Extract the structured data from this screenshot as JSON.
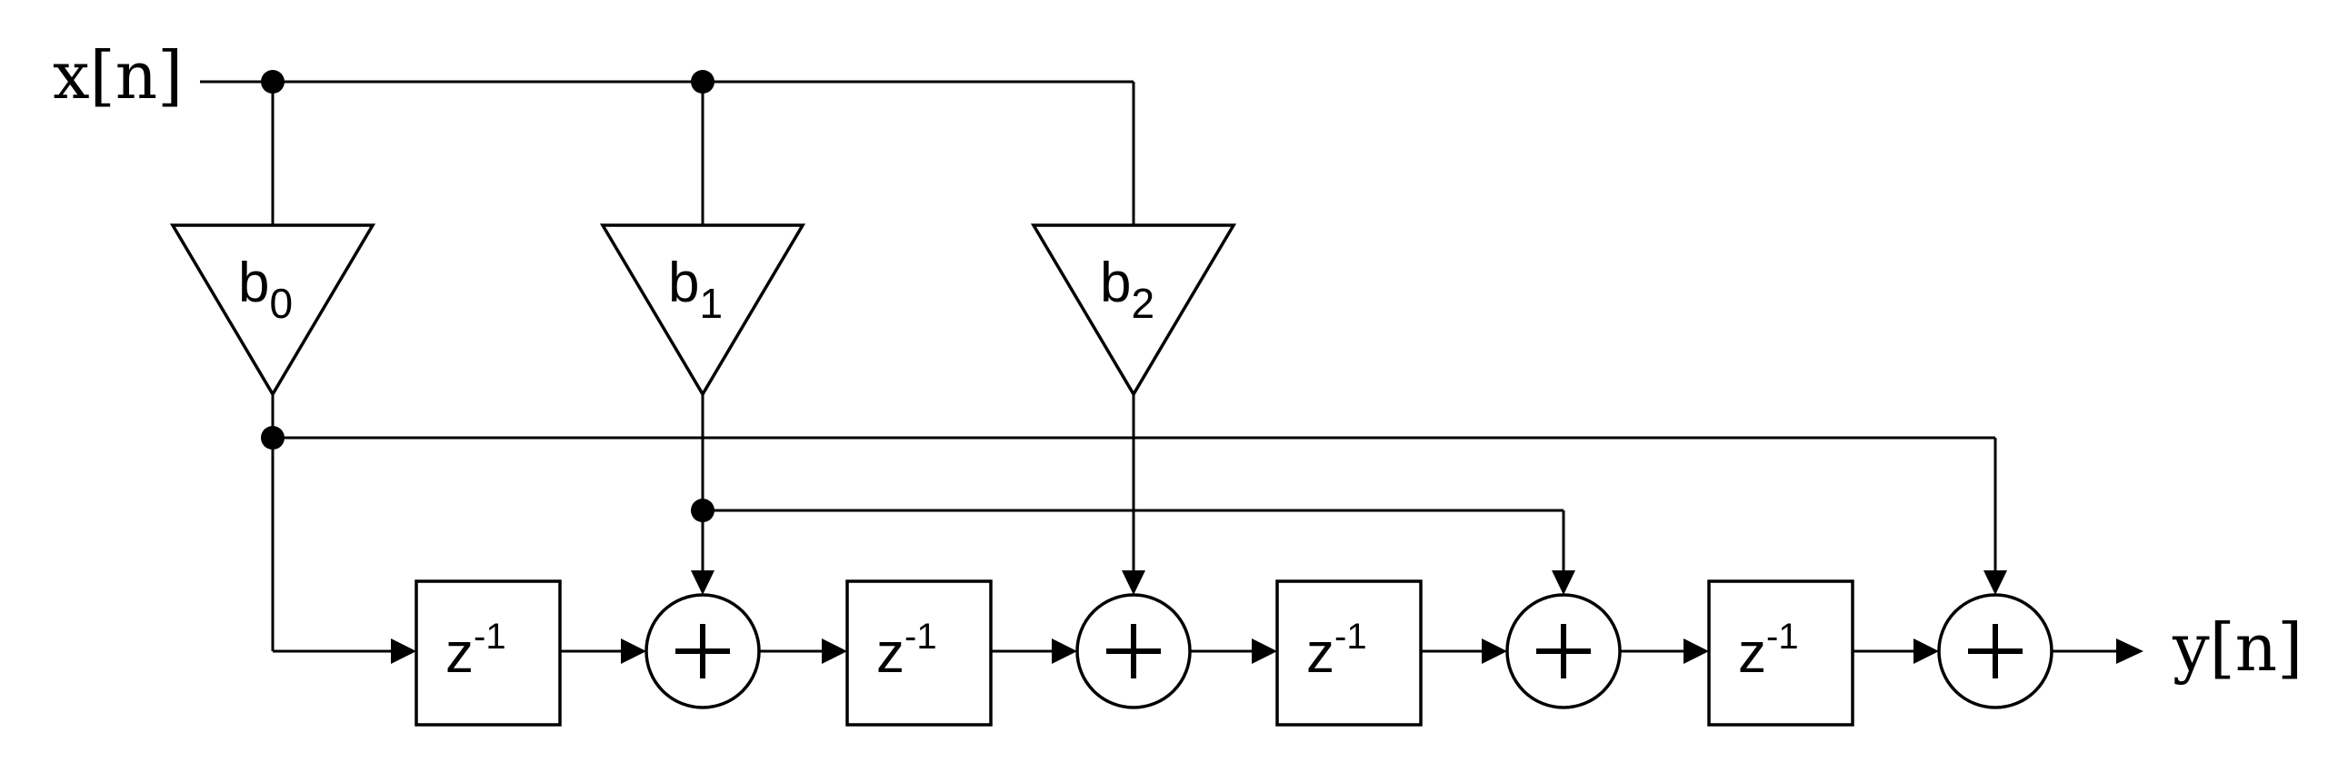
{
  "input_label": "x[n]",
  "output_label": "y[n]",
  "coefficients": [
    {
      "base": "b",
      "sub": "0"
    },
    {
      "base": "b",
      "sub": "1"
    },
    {
      "base": "b",
      "sub": "2"
    }
  ],
  "delays": [
    {
      "base": "z",
      "sup": "-1"
    },
    {
      "base": "z",
      "sup": "-1"
    },
    {
      "base": "z",
      "sup": "-1"
    },
    {
      "base": "z",
      "sup": "-1"
    }
  ],
  "adder_symbol": "+"
}
